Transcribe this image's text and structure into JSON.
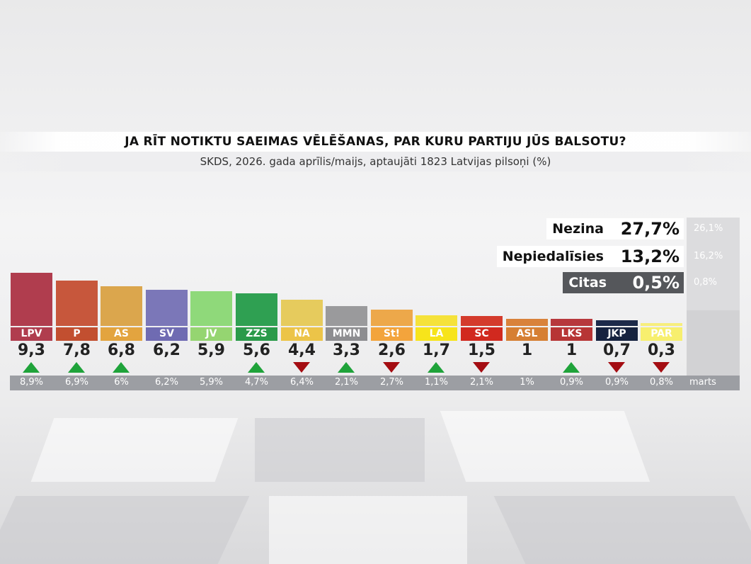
{
  "title": "JA RĪT NOTIKTU SAEIMAS VĒLĒŠANAS, PAR KURU PARTIJU JŪS BALSOTU?",
  "subtitle": "SKDS, 2026. gada aprīlis/maijs, aptaujāti 1823 Latvijas pilsoņi (%)",
  "previous_label": "marts",
  "colors": {
    "up_arrow": "#1fa33a",
    "down_arrow": "#a40d12",
    "previous_strip": "#9c9ea3"
  },
  "others": [
    {
      "name": "Nezina",
      "value": "27,7%",
      "previous": "26,1%",
      "style": "light"
    },
    {
      "name": "Nepiedalīsies",
      "value": "13,2%",
      "previous": "16,2%",
      "style": "light"
    },
    {
      "name": "Citas",
      "value": "0,5%",
      "previous": "0,8%",
      "style": "dark"
    }
  ],
  "chart_data": {
    "type": "bar",
    "categories": [
      "LPV",
      "P",
      "AS",
      "SV",
      "JV",
      "ZZS",
      "NA",
      "MMN",
      "St!",
      "LA",
      "SC",
      "ASL",
      "LKS",
      "JKP",
      "PAR"
    ],
    "values": [
      9.3,
      7.8,
      6.8,
      6.2,
      5.9,
      5.6,
      4.4,
      3.3,
      2.6,
      1.7,
      1.5,
      1,
      1,
      0.7,
      0.3
    ],
    "value_labels": [
      "9,3",
      "7,8",
      "6,8",
      "6,2",
      "5,9",
      "5,6",
      "4,4",
      "3,3",
      "2,6",
      "1,7",
      "1,5",
      "1",
      "1",
      "0,7",
      "0,3"
    ],
    "previous_values": [
      8.9,
      6.9,
      6,
      6.2,
      5.9,
      4.7,
      6.4,
      2.1,
      2.7,
      1.1,
      2.1,
      1,
      0.9,
      0.9,
      0.8
    ],
    "previous_labels": [
      "8,9%",
      "6,9%",
      "6%",
      "6,2%",
      "5,9%",
      "4,7%",
      "6,4%",
      "2,1%",
      "2,7%",
      "1,1%",
      "2,1%",
      "1%",
      "0,9%",
      "0,9%",
      "0,8%"
    ],
    "trend": [
      "up",
      "up",
      "up",
      "",
      "",
      "up",
      "down",
      "up",
      "down",
      "up",
      "down",
      "",
      "up",
      "down",
      "down"
    ],
    "bar_colors": [
      "#b03d4e",
      "#c7573c",
      "#dba64d",
      "#7b77b8",
      "#8fd97a",
      "#2fa052",
      "#e6cb5d",
      "#9a9a9c",
      "#eda84a",
      "#f5e23a",
      "#d43b2c",
      "#d9823a",
      "#b7383c",
      "#1d2a4a",
      "#f7ee7c"
    ],
    "label_colors": [
      "#b03d4e",
      "#c24f30",
      "#e3a43f",
      "#6f6bb2",
      "#95d571",
      "#2b9a4a",
      "#ecc448",
      "#8d8d90",
      "#f3a43c",
      "#f7e41b",
      "#d1291f",
      "#d67f33",
      "#b73535",
      "#16223f",
      "#f7ef6e"
    ],
    "label_text_colors": [
      "#fff",
      "#fff",
      "#fff",
      "#fff",
      "#fff",
      "#fff",
      "#fff",
      "#fff",
      "#fff",
      "#fff",
      "#fff",
      "#fff",
      "#fff",
      "#fff",
      "#fff"
    ],
    "title": "JA RĪT NOTIKTU SAEIMAS VĒLĒŠANAS, PAR KURU PARTIJU JŪS BALSOTU?",
    "xlabel": "",
    "ylabel": "",
    "ylim": [
      0,
      10
    ]
  }
}
